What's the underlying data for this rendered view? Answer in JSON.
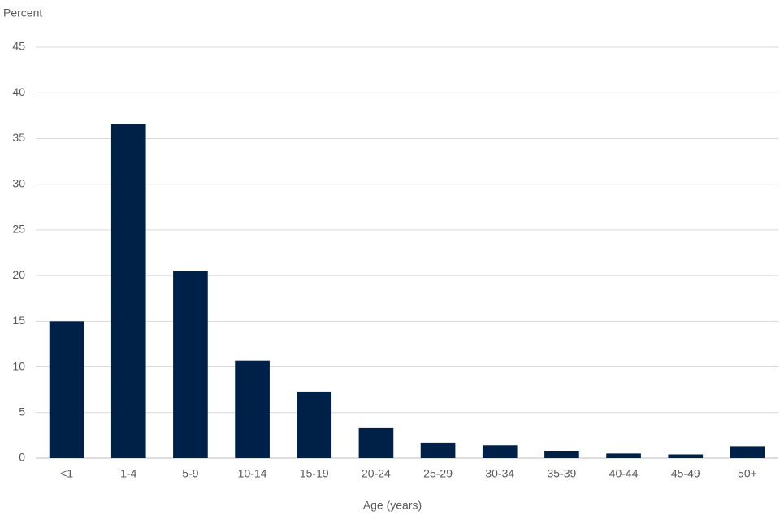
{
  "chart_data": {
    "type": "bar",
    "y_label": "Percent",
    "x_label": "Age (years)",
    "categories": [
      "<1",
      "1-4",
      "5-9",
      "10-14",
      "15-19",
      "20-24",
      "25-29",
      "30-34",
      "35-39",
      "40-44",
      "45-49",
      "50+"
    ],
    "values": [
      15.0,
      36.6,
      20.5,
      10.7,
      7.3,
      3.3,
      1.7,
      1.4,
      0.8,
      0.5,
      0.4,
      1.3
    ],
    "color": "#002147",
    "ylim": [
      0,
      45
    ],
    "yticks": [
      0,
      5,
      10,
      15,
      20,
      25,
      30,
      35,
      40,
      45
    ],
    "grid": true
  }
}
